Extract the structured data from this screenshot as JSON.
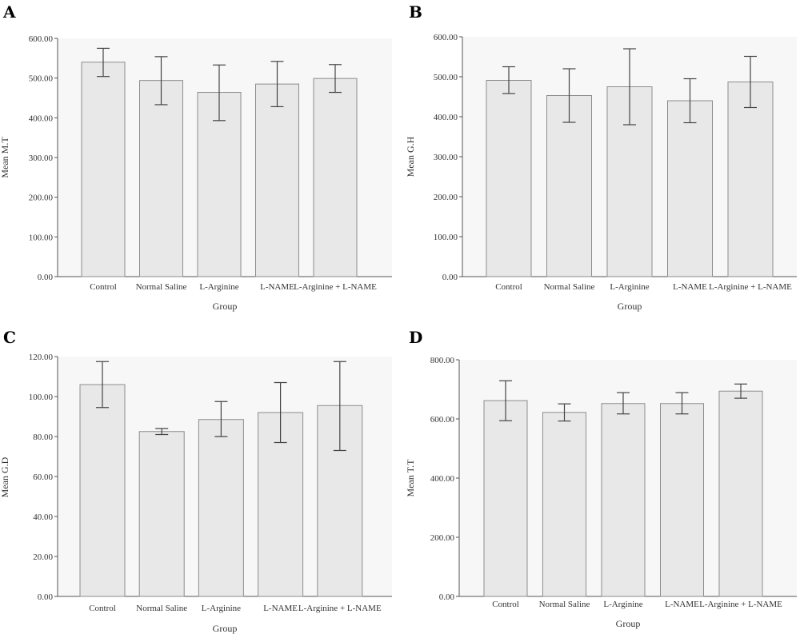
{
  "chart_data": [
    {
      "panel": "A",
      "type": "bar",
      "categories": [
        "Control",
        "Normal Saline",
        "L-Arginine",
        "L-NAME",
        "L-Arginine + L-NAME"
      ],
      "values": [
        540,
        494,
        464,
        485,
        499
      ],
      "error_low": [
        504,
        433,
        393,
        428,
        464
      ],
      "error_high": [
        575,
        554,
        533,
        542,
        534
      ],
      "xlabel": "Group",
      "ylabel": "Mean M.T",
      "ylim": [
        0,
        600
      ],
      "yticks": [
        "0.00",
        "100.00",
        "200.00",
        "300.00",
        "400.00",
        "500.00",
        "600.00"
      ]
    },
    {
      "panel": "B",
      "type": "bar",
      "categories": [
        "Control",
        "Normal Saline",
        "L-Arginine",
        "L-NAME",
        "L-Arginine + L-NAME"
      ],
      "values": [
        491,
        453,
        475,
        440,
        487
      ],
      "error_low": [
        458,
        386,
        380,
        385,
        423
      ],
      "error_high": [
        525,
        520,
        570,
        495,
        551
      ],
      "xlabel": "Group",
      "ylabel": "Mean G.H",
      "ylim": [
        0,
        600
      ],
      "yticks": [
        "0.00",
        "100.00",
        "200.00",
        "300.00",
        "400.00",
        "500.00",
        "600.00"
      ]
    },
    {
      "panel": "C",
      "type": "bar",
      "categories": [
        "Control",
        "Normal Saline",
        "L-Arginine",
        "L-NAME",
        "L-Arginine + L-NAME"
      ],
      "values": [
        106,
        82.5,
        88.5,
        92,
        95.5
      ],
      "error_low": [
        94.5,
        81,
        80,
        77,
        73
      ],
      "error_high": [
        117.5,
        84,
        97.5,
        107,
        117.5
      ],
      "xlabel": "Group",
      "ylabel": "Mean G.D",
      "ylim": [
        0,
        120
      ],
      "yticks": [
        "0.00",
        "20.00",
        "40.00",
        "60.00",
        "80.00",
        "100.00",
        "120.00"
      ]
    },
    {
      "panel": "D",
      "type": "bar",
      "categories": [
        "Control",
        "Normal Saline",
        "L-Arginine",
        "L-NAME",
        "L-Arginine + L-NAME"
      ],
      "values": [
        662,
        622,
        652,
        652,
        694
      ],
      "error_low": [
        594,
        593,
        617,
        617,
        670
      ],
      "error_high": [
        729,
        651,
        689,
        689,
        718
      ],
      "xlabel": "Group",
      "ylabel": "Mean T.T",
      "ylim": [
        0,
        800
      ],
      "yticks": [
        "0.00",
        "200.00",
        "400.00",
        "600.00",
        "800.00"
      ]
    }
  ]
}
